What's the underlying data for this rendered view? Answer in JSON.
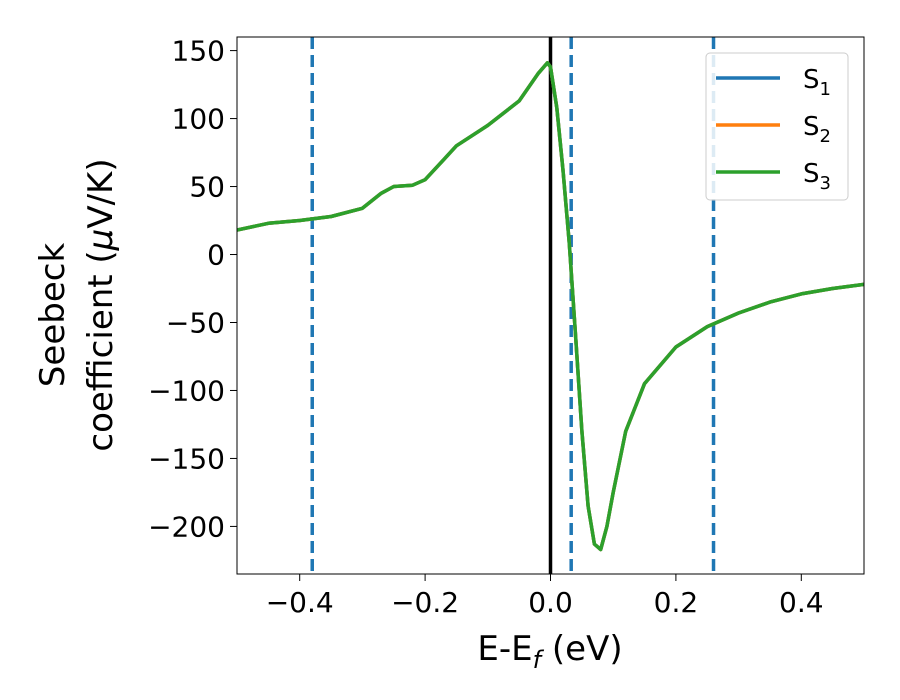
{
  "chart_data": {
    "type": "line",
    "xlabel": {
      "main": "E-E",
      "sub": "f",
      "unit": " (eV)"
    },
    "ylabel": {
      "line1": "Seebeck",
      "line2": "coefficient  (",
      "mu": "μ",
      "line2_end": "V/K)"
    },
    "xlim": [
      -0.5,
      0.5
    ],
    "ylim": [
      -235,
      160
    ],
    "xticks": [
      -0.4,
      -0.2,
      0.0,
      0.2,
      0.4
    ],
    "xtick_labels": [
      "−0.4",
      "−0.2",
      "0.0",
      "0.2",
      "0.4"
    ],
    "yticks": [
      150,
      100,
      50,
      0,
      -50,
      -100,
      -150,
      -200
    ],
    "ytick_labels": [
      "150",
      "100",
      "50",
      "0",
      "−50",
      "−100",
      "−150",
      "−200"
    ],
    "grid": false,
    "legend_position": "top-right",
    "series": [
      {
        "name": "S1",
        "label_main": "S",
        "label_sub": "1",
        "color": "#1f77b4",
        "x": [
          -0.5,
          -0.45,
          -0.4,
          -0.35,
          -0.3,
          -0.27,
          -0.25,
          -0.22,
          -0.2,
          -0.17,
          -0.15,
          -0.1,
          -0.05,
          -0.02,
          -0.005,
          0.0,
          0.01,
          0.02,
          0.03,
          0.04,
          0.05,
          0.06,
          0.07,
          0.08,
          0.09,
          0.1,
          0.12,
          0.15,
          0.2,
          0.25,
          0.3,
          0.35,
          0.4,
          0.45,
          0.5
        ],
        "y": [
          18,
          23,
          25,
          28,
          34,
          45,
          50,
          51,
          55,
          70,
          80,
          95,
          113,
          133,
          141,
          138,
          108,
          62,
          8,
          -60,
          -130,
          -185,
          -213,
          -217,
          -200,
          -175,
          -130,
          -95,
          -68,
          -53,
          -43,
          -35,
          -29,
          -25,
          -22
        ]
      },
      {
        "name": "S2",
        "label_main": "S",
        "label_sub": "2",
        "color": "#ff7f0e",
        "x": [
          -0.5,
          -0.45,
          -0.4,
          -0.35,
          -0.3,
          -0.27,
          -0.25,
          -0.22,
          -0.2,
          -0.17,
          -0.15,
          -0.1,
          -0.05,
          -0.02,
          -0.005,
          0.0,
          0.01,
          0.02,
          0.03,
          0.04,
          0.05,
          0.06,
          0.07,
          0.08,
          0.09,
          0.1,
          0.12,
          0.15,
          0.2,
          0.25,
          0.3,
          0.35,
          0.4,
          0.45,
          0.5
        ],
        "y": [
          18,
          23,
          25,
          28,
          34,
          45,
          50,
          51,
          55,
          70,
          80,
          95,
          113,
          133,
          141,
          138,
          108,
          62,
          8,
          -60,
          -130,
          -185,
          -213,
          -217,
          -200,
          -175,
          -130,
          -95,
          -68,
          -53,
          -43,
          -35,
          -29,
          -25,
          -22
        ]
      },
      {
        "name": "S3",
        "label_main": "S",
        "label_sub": "3",
        "color": "#2ca02c",
        "x": [
          -0.5,
          -0.45,
          -0.4,
          -0.35,
          -0.3,
          -0.27,
          -0.25,
          -0.22,
          -0.2,
          -0.17,
          -0.15,
          -0.1,
          -0.05,
          -0.02,
          -0.005,
          0.0,
          0.01,
          0.02,
          0.03,
          0.04,
          0.05,
          0.06,
          0.07,
          0.08,
          0.09,
          0.1,
          0.12,
          0.15,
          0.2,
          0.25,
          0.3,
          0.35,
          0.4,
          0.45,
          0.5
        ],
        "y": [
          18,
          23,
          25,
          28,
          34,
          45,
          50,
          51,
          55,
          70,
          80,
          95,
          113,
          133,
          141,
          138,
          108,
          62,
          8,
          -60,
          -130,
          -185,
          -213,
          -217,
          -200,
          -175,
          -130,
          -95,
          -68,
          -53,
          -43,
          -35,
          -29,
          -25,
          -22
        ]
      }
    ],
    "vlines": [
      {
        "x": -0.38,
        "style": "dashed",
        "color": "#1f77b4"
      },
      {
        "x": 0.0,
        "style": "solid",
        "color": "#000000"
      },
      {
        "x": 0.033,
        "style": "dashed",
        "color": "#1f77b4"
      },
      {
        "x": 0.26,
        "style": "dashed",
        "color": "#1f77b4"
      }
    ]
  }
}
